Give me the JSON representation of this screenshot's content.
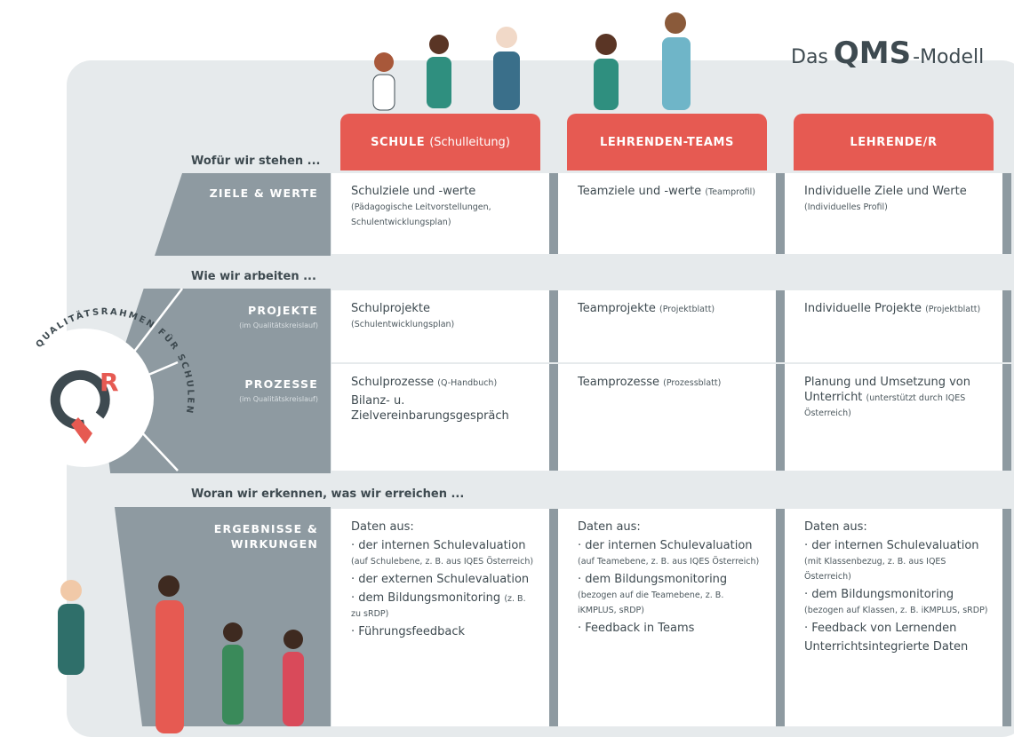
{
  "logo": {
    "title_prefix": "Das",
    "title_name": "QMS",
    "title_suffix": "-Modell"
  },
  "emblem": {
    "letter": "R",
    "ring_text": "QUALITÄTSRAHMEN FÜR SCHULEN"
  },
  "columns": [
    {
      "title": "SCHULE",
      "subtitle": "(Schulleitung)"
    },
    {
      "title": "LEHRENDEN-TEAMS"
    },
    {
      "title": "LEHRENDE/R"
    }
  ],
  "sections": [
    {
      "heading": "Wofür wir stehen ...",
      "rows": [
        {
          "label": "ZIELE & WERTE",
          "cells": [
            [
              {
                "text": "Schulziele und -werte",
                "note": "(Pädagogische Leitvorstellungen, Schulentwicklungsplan)"
              }
            ],
            [
              {
                "text": "Teamziele und -werte",
                "note": "(Teamprofil)"
              }
            ],
            [
              {
                "text": "Individuelle Ziele und Werte",
                "note": "(Individuelles Profil)"
              }
            ]
          ]
        }
      ]
    },
    {
      "heading": "Wie wir arbeiten ...",
      "rows": [
        {
          "label": "PROJEKTE",
          "sublabel": "(im Qualitätskreislauf)",
          "cells": [
            [
              {
                "text": "Schulprojekte",
                "note": "(Schulentwicklungsplan)"
              }
            ],
            [
              {
                "text": "Teamprojekte",
                "note": "(Projektblatt)"
              }
            ],
            [
              {
                "text": "Individuelle Projekte",
                "note": "(Projektblatt)"
              }
            ]
          ]
        },
        {
          "label": "PROZESSE",
          "sublabel": "(im Qualitätskreislauf)",
          "cells": [
            [
              {
                "text": "Schulprozesse",
                "note": "(Q-Handbuch)"
              },
              {
                "text": "Bilanz- u. Zielvereinbarungsgespräch"
              }
            ],
            [
              {
                "text": "Teamprozesse",
                "note": "(Prozessblatt)"
              }
            ],
            [
              {
                "text": "Planung und Umsetzung von Unterricht",
                "note": "(unterstützt durch IQES Österreich)"
              }
            ]
          ]
        }
      ]
    },
    {
      "heading": "Woran wir erkennen, was wir erreichen ...",
      "rows": [
        {
          "label": "ERGEBNISSE & WIRKUNGEN",
          "cells": [
            [
              {
                "text": "Daten aus:"
              },
              {
                "text": "· der internen Schulevaluation",
                "note": "(auf Schulebene, z. B. aus IQES Österreich)"
              },
              {
                "text": "· der externen Schulevaluation"
              },
              {
                "text": "· dem Bildungsmonitoring",
                "note": "(z. B. zu sRDP)"
              },
              {
                "text": "· Führungsfeedback"
              }
            ],
            [
              {
                "text": "Daten aus:"
              },
              {
                "text": "· der internen Schulevaluation",
                "note": "(auf Teamebene, z. B. aus IQES Österreich)"
              },
              {
                "text": "· dem Bildungsmonitoring",
                "note": "(bezogen auf die Teamebene, z. B. iKMPLUS, sRDP)"
              },
              {
                "text": "· Feedback in Teams"
              }
            ],
            [
              {
                "text": "Daten aus:"
              },
              {
                "text": "· der internen Schulevaluation",
                "note": "(mit Klassenbezug, z. B. aus IQES Österreich)"
              },
              {
                "text": "· dem Bildungsmonitoring",
                "note": "(bezogen auf Klassen, z. B. iKMPLUS, sRDP)"
              },
              {
                "text": "· Feedback von Lernenden"
              },
              {
                "text": "Unterrichtsintegrierte Daten"
              }
            ]
          ]
        }
      ]
    }
  ]
}
